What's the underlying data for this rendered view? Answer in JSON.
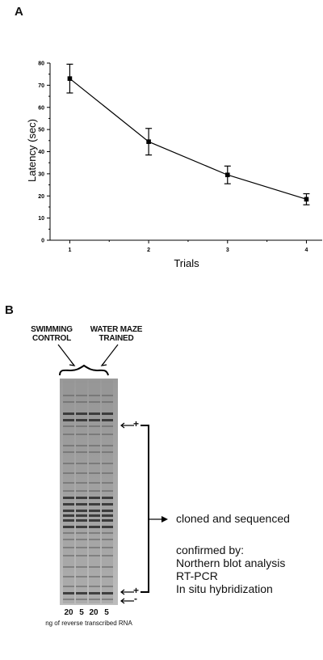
{
  "panel_a": {
    "letter": "A",
    "chart_data": {
      "type": "line",
      "xlabel": "Trials",
      "ylabel": "Latency (sec)",
      "x": [
        1,
        2,
        3,
        4
      ],
      "values": [
        73,
        44.5,
        29.5,
        18.5
      ],
      "errors": [
        6.5,
        6,
        4,
        2.5
      ],
      "xlim": [
        0.75,
        4.2
      ],
      "ylim": [
        0,
        80
      ],
      "xticks": [
        "1",
        "2",
        "3",
        "4"
      ],
      "yticks": [
        "0",
        "10",
        "20",
        "30",
        "40",
        "50",
        "60",
        "70",
        "80"
      ],
      "grid": false
    }
  },
  "panel_b": {
    "letter": "B",
    "group_left": [
      "SWIMMING",
      "CONTROL"
    ],
    "group_right": [
      "WATER MAZE",
      "TRAINED"
    ],
    "lane_labels": [
      "20",
      "5",
      "20",
      "5"
    ],
    "caption": "ng of reverse transcribed RNA",
    "plus_marker": "+",
    "minus_marker": "-",
    "result_text": "cloned and sequenced",
    "confirmed_header": "confirmed by:",
    "confirmed_methods": [
      "Northern blot analysis",
      "RT-PCR",
      "In situ hybridization"
    ]
  }
}
